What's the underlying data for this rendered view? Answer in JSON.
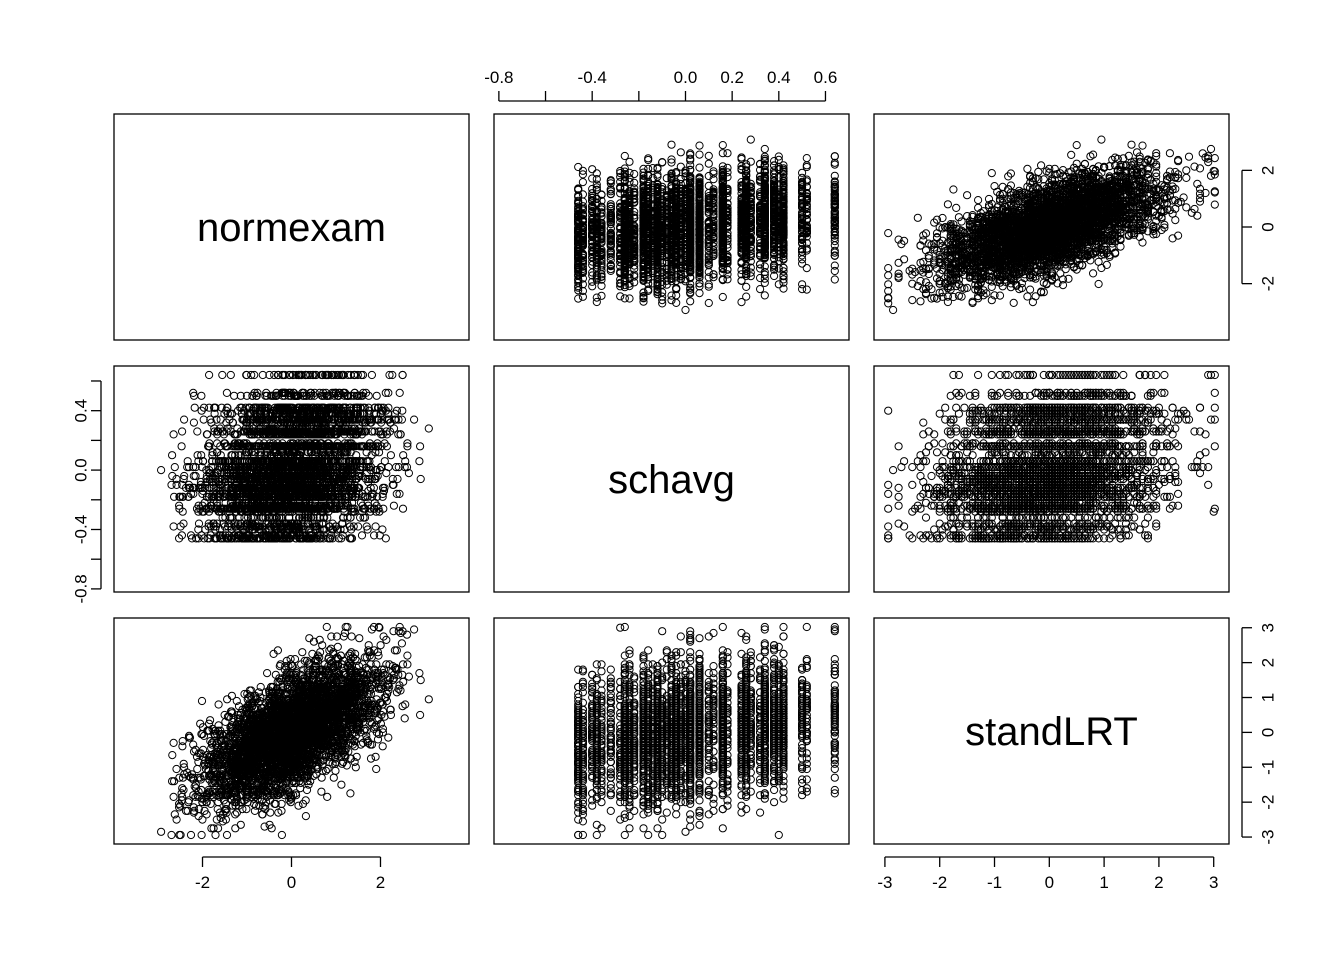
{
  "chart_data": {
    "type": "scatter",
    "plot": "pairs",
    "variables": [
      "normexam",
      "schavg",
      "standLRT"
    ],
    "point_style": "open-circle",
    "point_color": "#000000",
    "n_points": 4059,
    "ranges": {
      "normexam": [
        -3.67,
        3.67
      ],
      "schavg": [
        -0.76,
        0.64
      ],
      "standLRT": [
        -2.94,
        3.02
      ]
    },
    "ticks": {
      "normexam": [
        -2,
        0,
        2
      ],
      "schavg": [
        -0.8,
        -0.6,
        -0.4,
        -0.2,
        0.0,
        0.2,
        0.4,
        0.6
      ],
      "standLRT": [
        -3,
        -2,
        -1,
        0,
        1,
        2,
        3
      ]
    },
    "tick_labels": {
      "normexam": [
        "-2",
        "0",
        "2"
      ],
      "schavg": [
        "-0.8",
        "",
        "-0.4",
        "",
        "0.0",
        "0.2",
        "0.4",
        "0.6"
      ],
      "schavg_left": [
        "-0.8",
        "",
        "-0.4",
        "",
        "0.0",
        "",
        "0.4",
        ""
      ],
      "standLRT": [
        "-3",
        "-2",
        "-1",
        "0",
        "1",
        "2",
        "3"
      ]
    },
    "correlations": {
      "normexam_schavg": 0.26,
      "normexam_standLRT": 0.59,
      "schavg_standLRT": 0.35
    },
    "grid": false,
    "legend": "none"
  }
}
